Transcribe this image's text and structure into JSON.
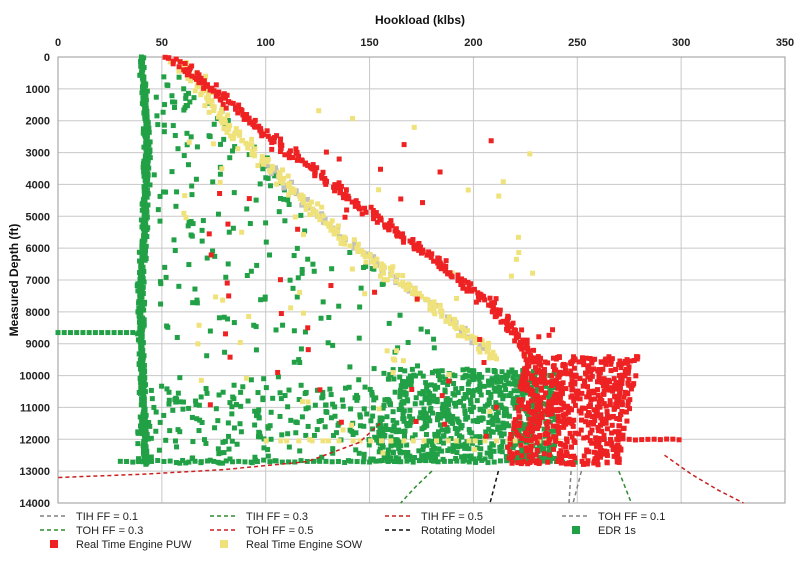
{
  "chart_data": {
    "type": "scatter",
    "title": "",
    "xlabel": "Hookload (klbs)",
    "ylabel": "Measured Depth (ft)",
    "x_position": "top",
    "y_inverted": true,
    "xlim": [
      0,
      350
    ],
    "ylim": [
      0,
      14000
    ],
    "xticks": [
      "0",
      "50",
      "100",
      "150",
      "200",
      "250",
      "300",
      "350"
    ],
    "yticks": [
      "0",
      "1000",
      "2000",
      "3000",
      "4000",
      "5000",
      "6000",
      "7000",
      "8000",
      "9000",
      "10000",
      "11000",
      "12000",
      "13000",
      "14000"
    ],
    "grid": true,
    "legend_position": "bottom",
    "colors": {
      "tih_ff_01": "#808080",
      "tih_ff_03": "#2e8b2e",
      "tih_ff_05": "#cc1f1f",
      "toh_ff_01": "#808080",
      "toh_ff_03": "#2e8b2e",
      "toh_ff_05": "#cc1f1f",
      "rotating": "#111111",
      "puw": "#ee2222",
      "sow": "#f0e27a",
      "edr": "#22a046",
      "engine_gray": "#bfbfbf"
    },
    "series": [
      {
        "name": "TIH FF = 0.1",
        "kind": "dashed-line",
        "x": [
          247,
          246.5,
          246
        ],
        "y": [
          13000,
          13500,
          14000
        ]
      },
      {
        "name": "TIH FF = 0.3",
        "kind": "dashed-line",
        "x": [
          180,
          172,
          165
        ],
        "y": [
          13000,
          13500,
          14000
        ]
      },
      {
        "name": "TIH FF = 0.5",
        "kind": "dashed-line",
        "x": [
          155,
          145,
          120,
          80,
          40,
          0
        ],
        "y": [
          11500,
          12100,
          12700,
          12950,
          13100,
          13200
        ]
      },
      {
        "name": "TOH FF = 0.1",
        "kind": "dashed-line",
        "x": [
          252,
          250,
          248
        ],
        "y": [
          13000,
          13500,
          14000
        ]
      },
      {
        "name": "TOH FF = 0.3",
        "kind": "dashed-line",
        "x": [
          270,
          273,
          276
        ],
        "y": [
          13000,
          13500,
          14000
        ]
      },
      {
        "name": "TOH FF = 0.5",
        "kind": "dashed-line",
        "x": [
          292,
          305,
          318,
          330
        ],
        "y": [
          12500,
          13100,
          13600,
          14000
        ]
      },
      {
        "name": "Rotating Model",
        "kind": "dashed-line",
        "x": [
          212,
          210,
          208
        ],
        "y": [
          13000,
          13500,
          14000
        ]
      },
      {
        "name": "Real Time Engine PUW",
        "kind": "square-markers",
        "trend_x": [
          55,
          60,
          80,
          100,
          120,
          140,
          160,
          180,
          200,
          215,
          225,
          235,
          245,
          255,
          265
        ],
        "trend_y": [
          0,
          300,
          1300,
          2400,
          3400,
          4400,
          5400,
          6300,
          7300,
          8200,
          9200,
          10200,
          11000,
          11800,
          12500
        ]
      },
      {
        "name": "Real Time Engine SOW",
        "kind": "square-markers",
        "trend_x": [
          58,
          65,
          75,
          85,
          100,
          115,
          130,
          150,
          170,
          190,
          200,
          210
        ],
        "trend_y": [
          100,
          600,
          1500,
          2500,
          3300,
          4300,
          5300,
          6300,
          7300,
          8300,
          8900,
          9300
        ]
      },
      {
        "name": "EDR 1s",
        "kind": "square-markers",
        "trend_x": [
          40,
          42,
          43,
          42,
          41,
          40,
          40,
          41,
          42
        ],
        "trend_y": [
          0,
          1500,
          3000,
          4500,
          6000,
          7500,
          9000,
          10500,
          12500
        ]
      }
    ]
  },
  "legend": [
    {
      "label": "TIH FF = 0.1",
      "style": "dash",
      "color": "#808080"
    },
    {
      "label": "TIH FF = 0.3",
      "style": "dash",
      "color": "#2e8b2e"
    },
    {
      "label": "TIH FF = 0.5",
      "style": "dash",
      "color": "#cc1f1f"
    },
    {
      "label": "TOH FF = 0.1",
      "style": "dash",
      "color": "#808080"
    },
    {
      "label": "TOH FF = 0.3",
      "style": "dash",
      "color": "#2e8b2e"
    },
    {
      "label": "TOH FF = 0.5",
      "style": "dash",
      "color": "#cc1f1f"
    },
    {
      "label": "Rotating Model",
      "style": "dash",
      "color": "#111111"
    },
    {
      "label": "EDR 1s",
      "style": "square",
      "color": "#22a046"
    },
    {
      "label": "Real Time Engine PUW",
      "style": "square",
      "color": "#ee2222"
    },
    {
      "label": "Real Time Engine SOW",
      "style": "square",
      "color": "#f0e27a"
    }
  ]
}
